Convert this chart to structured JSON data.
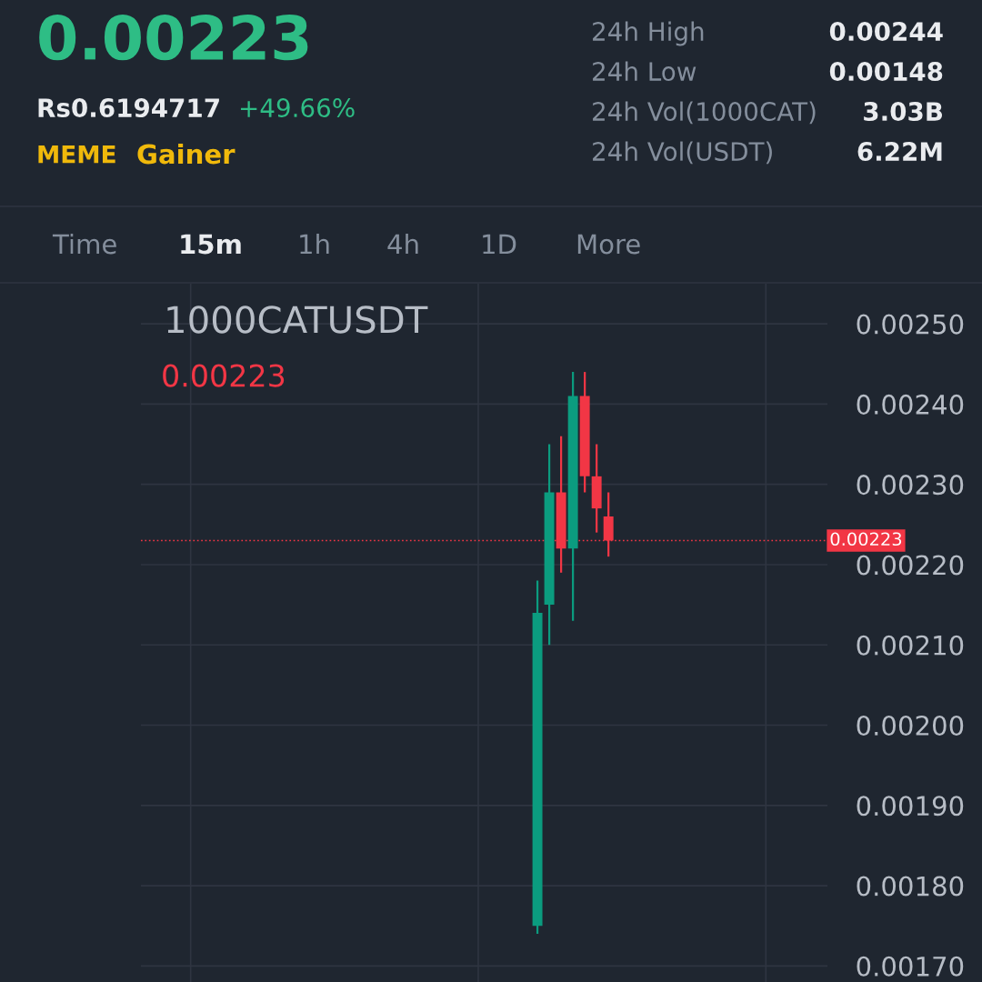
{
  "chart_data": {
    "type": "candlestick",
    "title": "1000CATUSDT",
    "categories": [
      null,
      null,
      null,
      null,
      null,
      null,
      null,
      null,
      null,
      null,
      null,
      null,
      null,
      null,
      null,
      null,
      null,
      null,
      null,
      null,
      null,
      null,
      null,
      null,
      null,
      null,
      null,
      null,
      null,
      null,
      null,
      null,
      null,
      null,
      null,
      null,
      null,
      null,
      null,
      null,
      null,
      null,
      null,
      null,
      null,
      null,
      null,
      null,
      null,
      null,
      null,
      null,
      null,
      null,
      null,
      null,
      null,
      null
    ],
    "ohlc": [
      null,
      null,
      null,
      null,
      null,
      null,
      null,
      null,
      null,
      null,
      null,
      null,
      null,
      null,
      null,
      null,
      null,
      null,
      null,
      null,
      null,
      null,
      null,
      null,
      null,
      null,
      null,
      null,
      null,
      null,
      null,
      null,
      null,
      [
        0.00175,
        0.00218,
        0.00174,
        0.00214
      ],
      [
        0.00215,
        0.00235,
        0.0021,
        0.00229
      ],
      [
        0.00229,
        0.00236,
        0.00219,
        0.00222
      ],
      [
        0.00222,
        0.00244,
        0.00213,
        0.00241
      ],
      [
        0.00241,
        0.00244,
        0.00229,
        0.00231
      ],
      [
        0.00231,
        0.00235,
        0.00224,
        0.00227
      ],
      [
        0.00226,
        0.00229,
        0.00221,
        0.00223
      ],
      null,
      null,
      null,
      null,
      null,
      null,
      null,
      null,
      null,
      null,
      null,
      null,
      null,
      null,
      null,
      null,
      null,
      null
    ],
    "ylim": [
      0.00168,
      0.00255
    ],
    "yticks": [
      {
        "value": 0.0017,
        "label": "0.00170"
      },
      {
        "value": 0.0018,
        "label": "0.00180"
      },
      {
        "value": 0.0019,
        "label": "0.00190"
      },
      {
        "value": 0.002,
        "label": "0.00200"
      },
      {
        "value": 0.0021,
        "label": "0.00210"
      },
      {
        "value": 0.0022,
        "label": "0.00220"
      },
      {
        "value": 0.0023,
        "label": "0.00230"
      },
      {
        "value": 0.0024,
        "label": "0.00240"
      },
      {
        "value": 0.0025,
        "label": "0.00250"
      }
    ],
    "tick_labels": "y",
    "grid": true,
    "ref_lines": [
      {
        "axis": "y",
        "value": 0.00223,
        "label": "0.00223",
        "color": "#f23645",
        "line_style": "dotted"
      }
    ],
    "annotations": [
      "0.00223",
      "Rs0.6194717",
      "+49.66%",
      "MEME",
      "Gainer",
      "24h High",
      "0.00244",
      "24h Low",
      "0.00148",
      "24h Vol(1000CAT)",
      "3.03B",
      "24h Vol(USDT)",
      "6.22M",
      "Time",
      "15m",
      "1h",
      "4h",
      "1D",
      "More",
      "0.00223"
    ]
  }
}
